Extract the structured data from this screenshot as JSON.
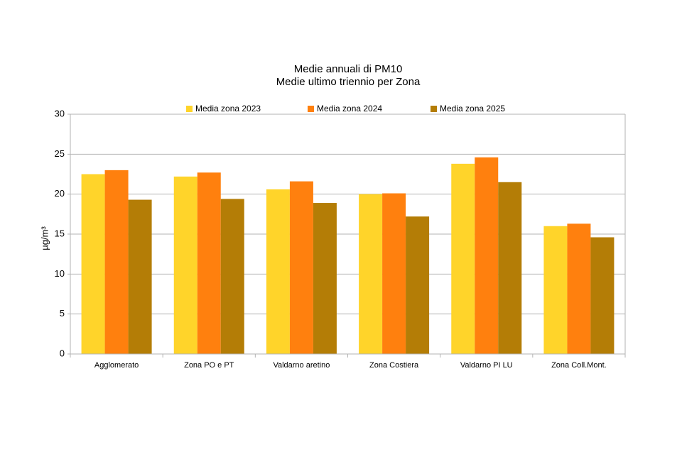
{
  "chart_data": {
    "type": "bar",
    "title": "Medie annuali di PM10",
    "subtitle": "Medie ultimo triennio per Zona",
    "y_label": "µg/m³",
    "categories": [
      "Agglomerato",
      "Zona PO e PT",
      "Valdarno aretino",
      "Zona Costiera",
      "Valdarno PI LU",
      "Zona Coll.Mont."
    ],
    "series": [
      {
        "name": "Media zona 2023",
        "color": "#ffd42a",
        "values": [
          22.5,
          22.2,
          20.6,
          20.0,
          23.8,
          16.0
        ]
      },
      {
        "name": "Media zona 2024",
        "color": "#ff800e",
        "values": [
          23.0,
          22.7,
          21.6,
          20.1,
          24.6,
          16.3
        ]
      },
      {
        "name": "Media zona 2025",
        "color": "#b47d06",
        "values": [
          19.3,
          19.4,
          18.9,
          17.2,
          21.5,
          14.6
        ]
      }
    ],
    "ylim": [
      0,
      30
    ],
    "yticks": [
      0,
      5,
      10,
      15,
      20,
      25,
      30
    ],
    "grid": true,
    "legend": "top"
  }
}
